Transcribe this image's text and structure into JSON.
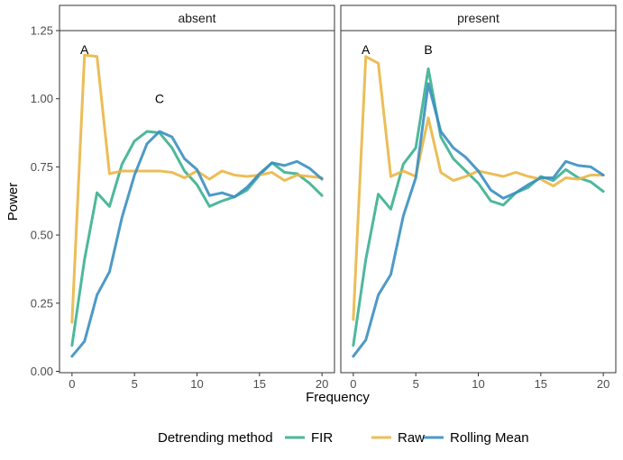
{
  "chart_data": {
    "type": "line",
    "xlabel": "Frequency",
    "ylabel": "Power",
    "xlim": [
      -1,
      21
    ],
    "ylim": [
      -0.005,
      1.25
    ],
    "xticks": [
      0,
      5,
      10,
      15,
      20
    ],
    "yticks": [
      0.0,
      0.25,
      0.5,
      0.75,
      1.0,
      1.25
    ],
    "ytick_labels": [
      "0.00",
      "0.25",
      "0.50",
      "0.75",
      "1.00",
      "1.25"
    ],
    "grid": false,
    "legend": {
      "title": "Detrending method",
      "position": "bottom",
      "entries": [
        {
          "name": "FIR",
          "color": "#3bb08f"
        },
        {
          "name": "Raw",
          "color": "#eab646"
        },
        {
          "name": "Rolling Mean",
          "color": "#3a8fc1"
        }
      ]
    },
    "panels": [
      {
        "label": "absent",
        "annotations": [
          {
            "text": "A",
            "x": 1,
            "y": 1.18
          },
          {
            "text": "C",
            "x": 7,
            "y": 1.0
          }
        ],
        "series": [
          {
            "name": "FIR",
            "color": "#3bb08f",
            "x": [
              0,
              1,
              2,
              3,
              4,
              5,
              6,
              7,
              8,
              9,
              10,
              11,
              12,
              13,
              14,
              15,
              16,
              17,
              18,
              19,
              20
            ],
            "values": [
              0.095,
              0.41,
              0.655,
              0.605,
              0.76,
              0.845,
              0.88,
              0.875,
              0.82,
              0.735,
              0.685,
              0.605,
              0.625,
              0.64,
              0.665,
              0.72,
              0.765,
              0.73,
              0.725,
              0.69,
              0.645
            ]
          },
          {
            "name": "Raw",
            "color": "#eab646",
            "x": [
              0,
              1,
              2,
              3,
              4,
              5,
              6,
              7,
              8,
              9,
              10,
              11,
              12,
              13,
              14,
              15,
              16,
              17,
              18,
              19,
              20
            ],
            "values": [
              0.18,
              1.16,
              1.155,
              0.725,
              0.735,
              0.735,
              0.735,
              0.735,
              0.73,
              0.71,
              0.735,
              0.705,
              0.735,
              0.72,
              0.715,
              0.72,
              0.73,
              0.7,
              0.72,
              0.715,
              0.71
            ]
          },
          {
            "name": "Rolling Mean",
            "color": "#3a8fc1",
            "x": [
              0,
              1,
              2,
              3,
              4,
              5,
              6,
              7,
              8,
              9,
              10,
              11,
              12,
              13,
              14,
              15,
              16,
              17,
              18,
              19,
              20
            ],
            "values": [
              0.055,
              0.11,
              0.28,
              0.365,
              0.565,
              0.72,
              0.835,
              0.88,
              0.86,
              0.78,
              0.74,
              0.645,
              0.655,
              0.64,
              0.675,
              0.725,
              0.765,
              0.755,
              0.77,
              0.745,
              0.705
            ]
          }
        ]
      },
      {
        "label": "present",
        "annotations": [
          {
            "text": "A",
            "x": 1,
            "y": 1.18
          },
          {
            "text": "B",
            "x": 6,
            "y": 1.18
          }
        ],
        "series": [
          {
            "name": "FIR",
            "color": "#3bb08f",
            "x": [
              0,
              1,
              2,
              3,
              4,
              5,
              6,
              7,
              8,
              9,
              10,
              11,
              12,
              13,
              14,
              15,
              16,
              17,
              18,
              19,
              20
            ],
            "values": [
              0.095,
              0.41,
              0.65,
              0.595,
              0.76,
              0.82,
              1.11,
              0.86,
              0.78,
              0.735,
              0.69,
              0.625,
              0.61,
              0.655,
              0.675,
              0.715,
              0.7,
              0.74,
              0.71,
              0.695,
              0.66
            ]
          },
          {
            "name": "Raw",
            "color": "#eab646",
            "x": [
              0,
              1,
              2,
              3,
              4,
              5,
              6,
              7,
              8,
              9,
              10,
              11,
              12,
              13,
              14,
              15,
              16,
              17,
              18,
              19,
              20
            ],
            "values": [
              0.19,
              1.155,
              1.13,
              0.715,
              0.735,
              0.715,
              0.93,
              0.73,
              0.7,
              0.715,
              0.735,
              0.725,
              0.715,
              0.73,
              0.715,
              0.705,
              0.68,
              0.71,
              0.705,
              0.72,
              0.72
            ]
          },
          {
            "name": "Rolling Mean",
            "color": "#3a8fc1",
            "x": [
              0,
              1,
              2,
              3,
              4,
              5,
              6,
              7,
              8,
              9,
              10,
              11,
              12,
              13,
              14,
              15,
              16,
              17,
              18,
              19,
              20
            ],
            "values": [
              0.055,
              0.115,
              0.28,
              0.355,
              0.57,
              0.71,
              1.055,
              0.88,
              0.82,
              0.785,
              0.735,
              0.665,
              0.635,
              0.655,
              0.685,
              0.71,
              0.71,
              0.77,
              0.755,
              0.75,
              0.72
            ]
          }
        ]
      }
    ]
  }
}
